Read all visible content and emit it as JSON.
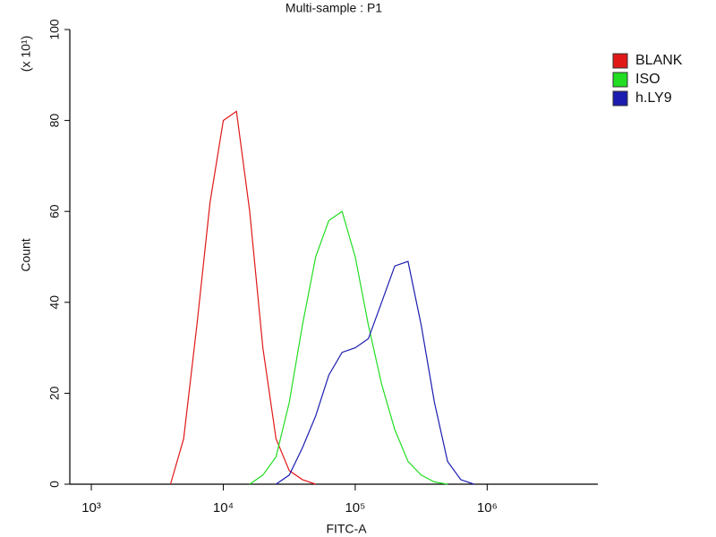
{
  "chart_data": {
    "type": "line",
    "title": "Multi-sample : P1",
    "x_label": "FITC-A",
    "y_label": "Count",
    "y_multiplier": "(x 10¹)",
    "log_x": true,
    "xlim": [
      687,
      6900000
    ],
    "xticks": [
      {
        "value": 1000,
        "label": "10³"
      },
      {
        "value": 10000,
        "label": "10⁴"
      },
      {
        "value": 100000,
        "label": "10⁵"
      },
      {
        "value": 1000000,
        "label": "10⁶"
      }
    ],
    "ylim": [
      0,
      100
    ],
    "yticks": [
      0,
      20,
      40,
      60,
      80,
      100
    ],
    "x": [
      3981,
      5012,
      6310,
      7943,
      10000,
      12589,
      15849,
      19953,
      25119,
      31623,
      39811,
      50119,
      63096,
      79433,
      100000,
      125893,
      158489,
      199526,
      251189,
      316228,
      398107,
      501187,
      630957,
      794328,
      1000000
    ],
    "series": [
      {
        "name": "BLANK",
        "color": "#e01818",
        "values": [
          0,
          10,
          35,
          62,
          80,
          82,
          60,
          30,
          10,
          3,
          1,
          0,
          null,
          null,
          null,
          null,
          null,
          null,
          null,
          null,
          null,
          null,
          null,
          null,
          null
        ]
      },
      {
        "name": "ISO",
        "color": "#22dd22",
        "values": [
          null,
          null,
          null,
          null,
          null,
          null,
          0,
          2,
          6,
          18,
          35,
          50,
          58,
          60,
          50,
          35,
          22,
          12,
          5,
          2,
          0.5,
          0,
          null,
          null,
          null
        ]
      },
      {
        "name": "h.LY9",
        "color": "#1c1cb0",
        "values": [
          null,
          null,
          null,
          null,
          null,
          null,
          null,
          null,
          0,
          2,
          8,
          15,
          24,
          29,
          30,
          32,
          40,
          48,
          49,
          35,
          18,
          5,
          1,
          0,
          null
        ]
      }
    ]
  }
}
